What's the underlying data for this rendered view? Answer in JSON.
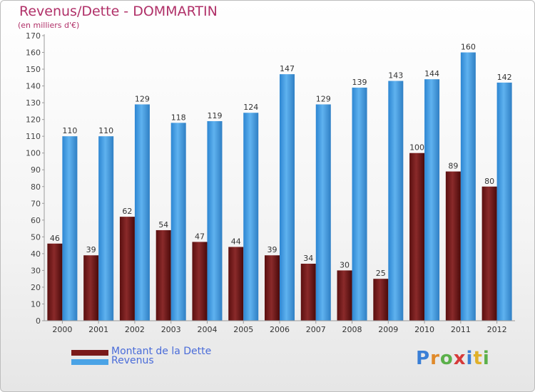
{
  "title": "Revenus/Dette - DOMMARTIN",
  "subtitle": "(en milliers d'€)",
  "brand": {
    "letters": [
      {
        "ch": "P",
        "color": "#3a7fd6"
      },
      {
        "ch": "r",
        "color": "#e08a2a"
      },
      {
        "ch": "o",
        "color": "#5bb04a"
      },
      {
        "ch": "x",
        "color": "#d63a3a"
      },
      {
        "ch": "i",
        "color": "#3a7fd6"
      },
      {
        "ch": "t",
        "color": "#e0b02a"
      },
      {
        "ch": "i",
        "color": "#5bb04a"
      }
    ]
  },
  "legend": [
    {
      "label": "Montant de la Dette",
      "color": "#7a1a1a"
    },
    {
      "label": "Revenus",
      "color": "#4aa3e6"
    }
  ],
  "chart_data": {
    "type": "bar",
    "categories": [
      "2000",
      "2001",
      "2002",
      "2003",
      "2004",
      "2005",
      "2006",
      "2007",
      "2008",
      "2009",
      "2010",
      "2011",
      "2012"
    ],
    "series": [
      {
        "name": "Montant de la Dette",
        "color": "#7a1a1a",
        "values": [
          46,
          39,
          62,
          54,
          47,
          44,
          39,
          34,
          30,
          25,
          100,
          89,
          80
        ]
      },
      {
        "name": "Revenus",
        "color": "#4aa3e6",
        "values": [
          110,
          110,
          129,
          118,
          119,
          124,
          147,
          129,
          139,
          143,
          144,
          160,
          142
        ]
      }
    ],
    "ylim": [
      0,
      170
    ],
    "ytick_step": 10,
    "grid": false,
    "legend_position": "bottom-left"
  }
}
